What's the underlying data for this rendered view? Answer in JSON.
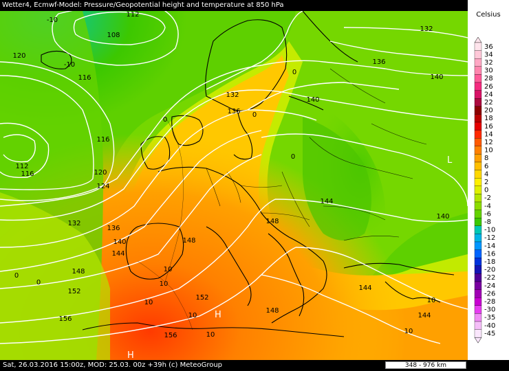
{
  "title": "Wetter4, Ecmwf-Model: Pressure/Geopotential height and temperature at 850 hPa",
  "footer": {
    "info": "Sat, 26.03.2016 15:00z, MOD: 25.03. 00z +39h (c) MeteoGroup",
    "scale": "348 - 976 km"
  },
  "legend": {
    "title": "Celsius",
    "steps": [
      {
        "label": "36",
        "color": "#ffe4ec"
      },
      {
        "label": "34",
        "color": "#ffc8d8"
      },
      {
        "label": "32",
        "color": "#ffa8c4"
      },
      {
        "label": "30",
        "color": "#ff86ae"
      },
      {
        "label": "28",
        "color": "#ff5a98"
      },
      {
        "label": "26",
        "color": "#f42b7f"
      },
      {
        "label": "24",
        "color": "#d81366"
      },
      {
        "label": "22",
        "color": "#ad0a3f"
      },
      {
        "label": "20",
        "color": "#8c0000"
      },
      {
        "label": "18",
        "color": "#bb0000"
      },
      {
        "label": "16",
        "color": "#e50000"
      },
      {
        "label": "14",
        "color": "#ff2a00"
      },
      {
        "label": "12",
        "color": "#ff5a00"
      },
      {
        "label": "10",
        "color": "#ff8000"
      },
      {
        "label": "8",
        "color": "#ffa000"
      },
      {
        "label": "6",
        "color": "#ffbf00"
      },
      {
        "label": "4",
        "color": "#ffd800"
      },
      {
        "label": "2",
        "color": "#fff000"
      },
      {
        "label": "0",
        "color": "#e0f000"
      },
      {
        "label": "-2",
        "color": "#b4e600"
      },
      {
        "label": "-4",
        "color": "#8cdc00"
      },
      {
        "label": "-6",
        "color": "#64d200"
      },
      {
        "label": "-8",
        "color": "#3cc800"
      },
      {
        "label": "-10",
        "color": "#00c8b4"
      },
      {
        "label": "-12",
        "color": "#00b4e6"
      },
      {
        "label": "-14",
        "color": "#0096ff"
      },
      {
        "label": "-16",
        "color": "#0064ff"
      },
      {
        "label": "-18",
        "color": "#0032dc"
      },
      {
        "label": "-20",
        "color": "#1414b4"
      },
      {
        "label": "-22",
        "color": "#500096"
      },
      {
        "label": "-24",
        "color": "#7800a0"
      },
      {
        "label": "-26",
        "color": "#a000b4"
      },
      {
        "label": "-28",
        "color": "#c800d2"
      },
      {
        "label": "-30",
        "color": "#e63cf0"
      },
      {
        "label": "-35",
        "color": "#f08cf5"
      },
      {
        "label": "-40",
        "color": "#f5bef8"
      },
      {
        "label": "-45",
        "color": "#fae6fc"
      }
    ]
  },
  "contour_labels": [
    {
      "text": "112"
    },
    {
      "text": "108"
    },
    {
      "text": "120"
    },
    {
      "text": "116"
    },
    {
      "text": "112"
    },
    {
      "text": "116"
    },
    {
      "text": "116"
    },
    {
      "text": "120"
    },
    {
      "text": "124"
    },
    {
      "text": "132"
    },
    {
      "text": "136"
    },
    {
      "text": "140"
    },
    {
      "text": "144"
    },
    {
      "text": "148"
    },
    {
      "text": "152"
    },
    {
      "text": "156"
    },
    {
      "text": "156"
    },
    {
      "text": "152"
    },
    {
      "text": "148"
    },
    {
      "text": "148"
    },
    {
      "text": "148"
    },
    {
      "text": "144"
    },
    {
      "text": "144"
    },
    {
      "text": "144"
    },
    {
      "text": "140"
    },
    {
      "text": "140"
    },
    {
      "text": "140"
    },
    {
      "text": "136"
    },
    {
      "text": "136"
    },
    {
      "text": "132"
    },
    {
      "text": "132"
    },
    {
      "text": "144"
    }
  ],
  "temp_labels": [
    {
      "text": "-10"
    },
    {
      "text": "-10"
    },
    {
      "text": "0"
    },
    {
      "text": "0"
    },
    {
      "text": "0"
    },
    {
      "text": "0"
    },
    {
      "text": "0"
    },
    {
      "text": "0"
    },
    {
      "text": "10"
    },
    {
      "text": "10"
    },
    {
      "text": "10"
    },
    {
      "text": "10"
    },
    {
      "text": "10"
    },
    {
      "text": "10"
    },
    {
      "text": "10"
    }
  ],
  "pressure_centers": [
    {
      "text": "H"
    },
    {
      "text": "H"
    },
    {
      "text": "L"
    }
  ]
}
